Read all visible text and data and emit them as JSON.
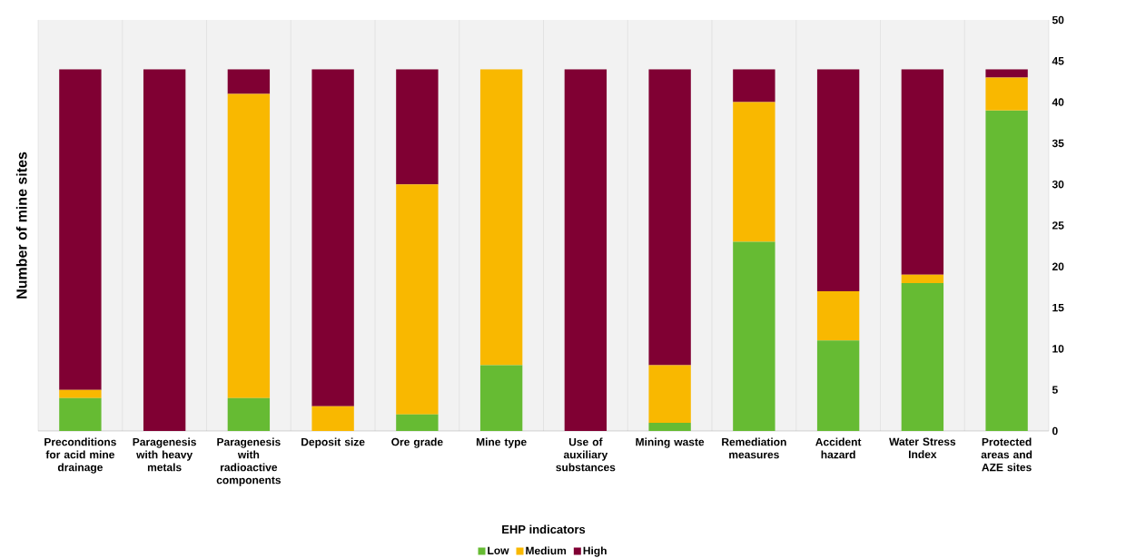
{
  "chart_data": {
    "type": "bar",
    "stacked": true,
    "xlabel": "EHP indicators",
    "ylabel": "Number of mine sites",
    "categories": [
      "Preconditions for acid mine drainage",
      "Paragenesis with heavy metals",
      "Paragenesis with radioactive components",
      "Deposit size",
      "Ore grade",
      "Mine type",
      "Use of auxiliary substances",
      "Mining waste",
      "Remediation measures",
      "Accident hazard",
      "Water Stress Index",
      "Protected areas and AZE sites"
    ],
    "series": [
      {
        "name": "Low",
        "color": "#66bb33",
        "values": [
          4,
          0,
          4,
          0,
          2,
          8,
          0,
          1,
          23,
          11,
          18,
          39
        ]
      },
      {
        "name": "Medium",
        "color": "#f9b800",
        "values": [
          1,
          0,
          37,
          3,
          28,
          36,
          0,
          7,
          17,
          6,
          1,
          4
        ]
      },
      {
        "name": "High",
        "color": "#800033",
        "values": [
          39,
          44,
          3,
          41,
          14,
          0,
          44,
          36,
          4,
          27,
          25,
          1
        ]
      }
    ],
    "ylim": [
      0,
      50
    ],
    "yticks": [
      0,
      5,
      10,
      15,
      20,
      25,
      30,
      35,
      40,
      45,
      50
    ],
    "grid": "x",
    "legend": "bottom"
  }
}
